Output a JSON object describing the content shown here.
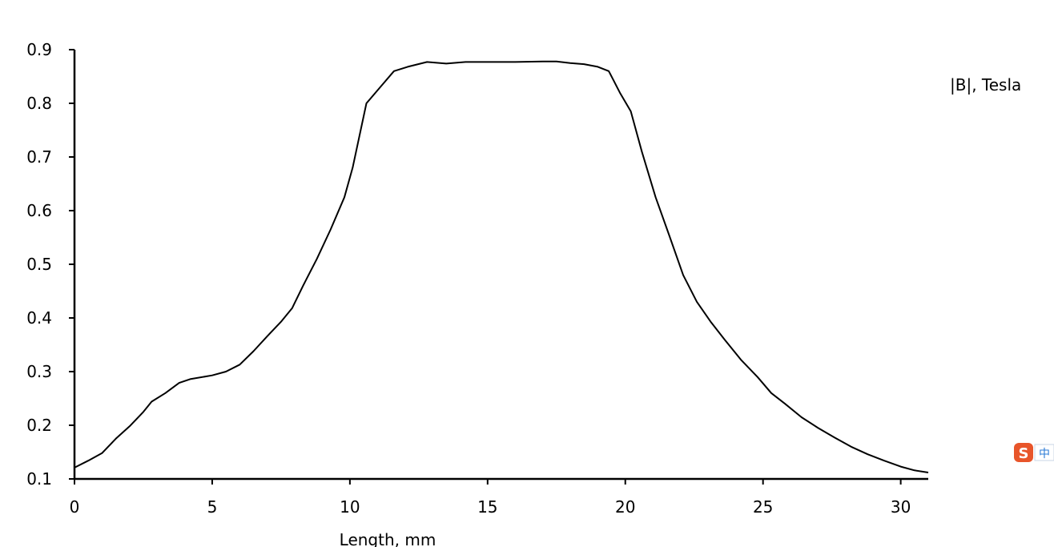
{
  "chart_data": {
    "type": "line",
    "title": "",
    "xlabel": "Length, mm",
    "ylabel": "",
    "series_label": "|B|, Tesla",
    "xlim": [
      0,
      31
    ],
    "ylim": [
      0.1,
      0.9
    ],
    "x_ticks": [
      0,
      5,
      10,
      15,
      20,
      25,
      30
    ],
    "x_tick_labels": [
      "0",
      "5",
      "10",
      "15",
      "20",
      "25",
      "30"
    ],
    "y_ticks": [
      0.1,
      0.2,
      0.3,
      0.4,
      0.5,
      0.6,
      0.7,
      0.8,
      0.9
    ],
    "y_tick_labels": [
      "0.1",
      "0.2",
      "0.3",
      "0.4",
      "0.5",
      "0.6",
      "0.7",
      "0.8",
      "0.9"
    ],
    "grid": false,
    "line_color": "#000000",
    "series": [
      {
        "x": [
          0,
          0.5,
          1,
          1.5,
          2,
          2.5,
          2.8,
          3.3,
          3.8,
          4.2,
          5,
          5.5,
          6,
          6.5,
          7,
          7.5,
          7.9,
          8.3,
          8.8,
          9.3,
          9.8,
          10.1,
          10.6,
          11.1,
          11.6,
          12.1,
          12.8,
          13.5,
          14.2,
          15,
          16,
          17,
          17.5,
          18,
          18.5,
          19,
          19.4,
          19.8,
          20.2,
          20.6,
          21.1,
          21.6,
          22.1,
          22.6,
          23.1,
          23.6,
          24.2,
          24.8,
          25.3,
          25.8,
          26.4,
          27,
          27.6,
          28.2,
          28.8,
          29.4,
          30,
          30.5,
          31
        ],
        "y": [
          0.121,
          0.134,
          0.148,
          0.175,
          0.198,
          0.225,
          0.244,
          0.26,
          0.279,
          0.286,
          0.293,
          0.3,
          0.313,
          0.338,
          0.366,
          0.393,
          0.418,
          0.46,
          0.51,
          0.565,
          0.625,
          0.68,
          0.8,
          0.83,
          0.86,
          0.868,
          0.877,
          0.874,
          0.877,
          0.877,
          0.877,
          0.878,
          0.878,
          0.875,
          0.873,
          0.868,
          0.86,
          0.82,
          0.785,
          0.71,
          0.625,
          0.553,
          0.48,
          0.43,
          0.393,
          0.36,
          0.322,
          0.29,
          0.26,
          0.24,
          0.215,
          0.195,
          0.177,
          0.16,
          0.146,
          0.134,
          0.123,
          0.116,
          0.112
        ]
      }
    ]
  }
}
